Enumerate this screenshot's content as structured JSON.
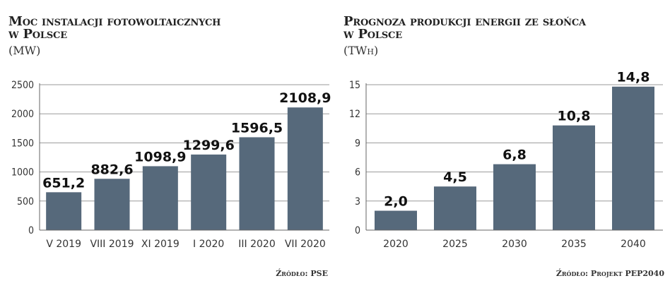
{
  "panels": [
    {
      "title_line1": "Moc instalacji fotowoltaicznych",
      "title_line2": "w Polsce",
      "unit": "(MW)",
      "source": "Źródło: PSE"
    },
    {
      "title_line1": "Prognoza produkcji energii ze słońca",
      "title_line2": "w Polsce",
      "unit": "(TWh)",
      "source": "Źródło: Projekt PEP2040"
    }
  ],
  "chart_data": [
    {
      "type": "bar",
      "categories": [
        "V 2019",
        "VIII 2019",
        "XI 2019",
        "I 2020",
        "III 2020",
        "VII 2020"
      ],
      "values": [
        651.2,
        882.6,
        1098.9,
        1299.6,
        1596.5,
        2108.9
      ],
      "value_labels": [
        "651,2",
        "882,6",
        "1098,9",
        "1299,6",
        "1596,5",
        "2108,9"
      ],
      "yticks": [
        0,
        500,
        1000,
        1500,
        2000,
        2500
      ],
      "ylim": [
        0,
        2500
      ],
      "grid": true,
      "bar_color": "#56697b"
    },
    {
      "type": "bar",
      "categories": [
        "2020",
        "2025",
        "2030",
        "2035",
        "2040"
      ],
      "values": [
        2.0,
        4.5,
        6.8,
        10.8,
        14.8
      ],
      "value_labels": [
        "2,0",
        "4,5",
        "6,8",
        "10,8",
        "14,8"
      ],
      "yticks": [
        0,
        3,
        6,
        9,
        12,
        15
      ],
      "ylim": [
        0,
        15
      ],
      "grid": true,
      "bar_color": "#56697b"
    }
  ]
}
